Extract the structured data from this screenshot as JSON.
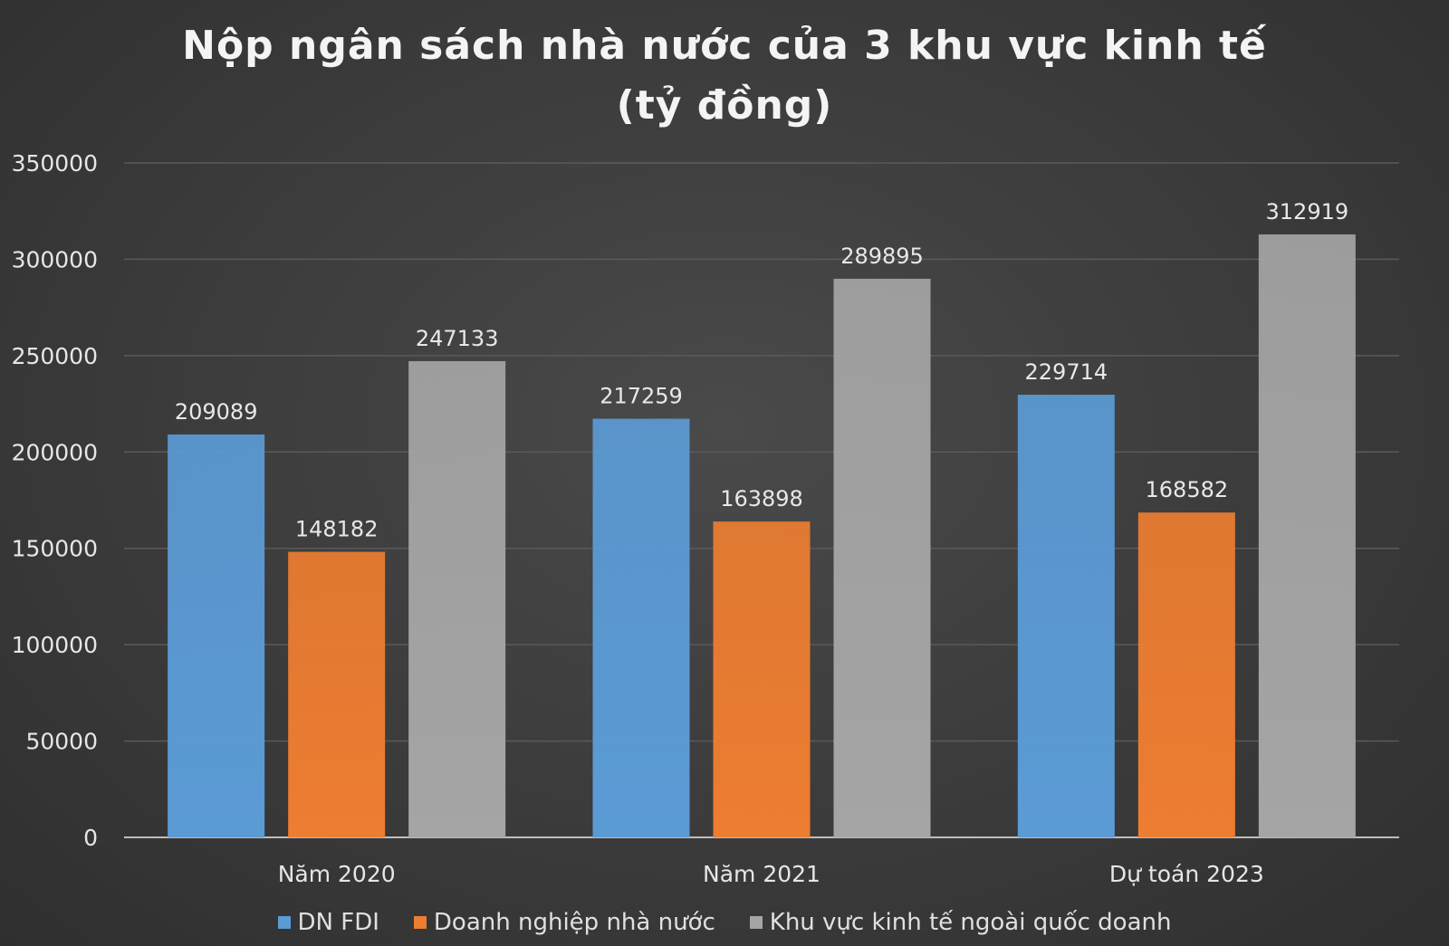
{
  "chart_data": {
    "type": "bar",
    "title": "Nộp  ngân sách nhà nước của 3 khu vực kinh tế\n(tỷ đồng)",
    "categories": [
      "Năm 2020",
      "Năm 2021",
      "Dự toán 2023"
    ],
    "series": [
      {
        "name": "DN FDI",
        "color": "#5b9bd5",
        "values": [
          209089,
          217259,
          229714
        ]
      },
      {
        "name": "Doanh nghiệp nhà nước",
        "color": "#ed7d31",
        "values": [
          148182,
          163898,
          168582
        ]
      },
      {
        "name": "Khu vực kinh tế ngoài quốc doanh",
        "color": "#a5a5a5",
        "values": [
          247133,
          289895,
          312919
        ]
      }
    ],
    "ylim": [
      0,
      350000
    ],
    "yticks": [
      0,
      50000,
      100000,
      150000,
      200000,
      250000,
      300000,
      350000
    ],
    "grid": true,
    "legend_position": "bottom",
    "data_labels": true
  }
}
